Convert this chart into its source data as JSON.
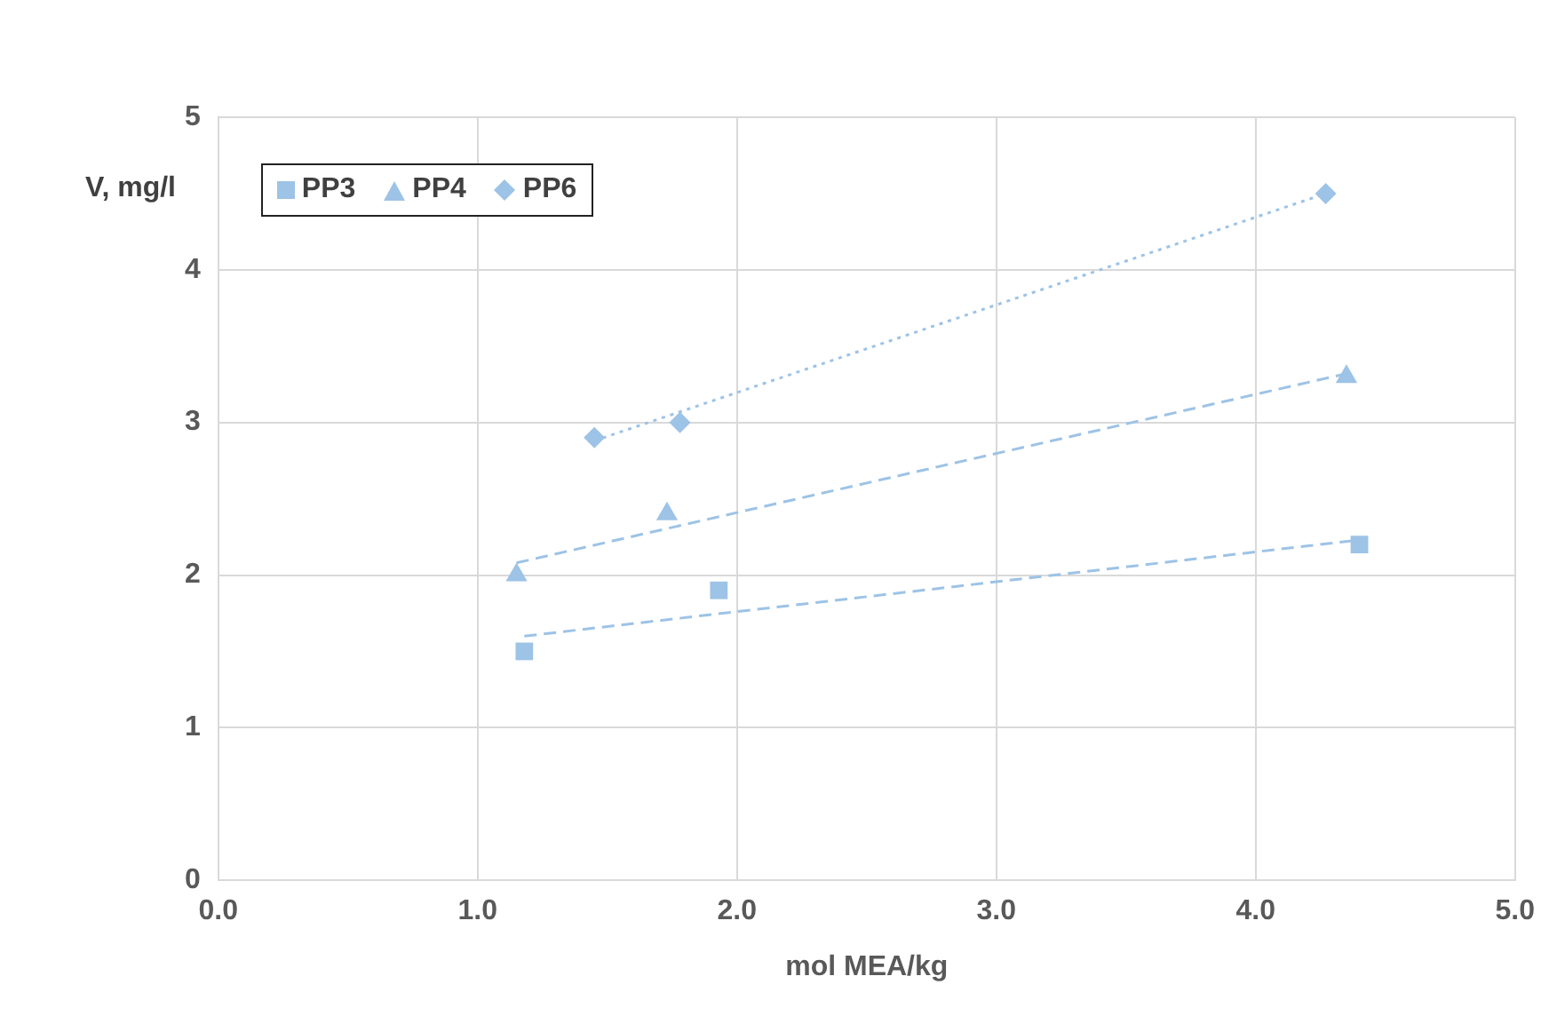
{
  "chart_data": {
    "type": "scatter",
    "xlabel": "mol MEA/kg",
    "ylabel": "V, mg/l",
    "xlim": [
      0,
      5
    ],
    "xticks": [
      {
        "value": 0,
        "label": "0.0"
      },
      {
        "value": 1,
        "label": "1.0"
      },
      {
        "value": 2,
        "label": "2.0"
      },
      {
        "value": 3,
        "label": "3.0"
      },
      {
        "value": 4,
        "label": "4.0"
      },
      {
        "value": 5,
        "label": "5.0"
      }
    ],
    "ylim": [
      0,
      5
    ],
    "yticks": [
      0,
      1,
      2,
      3,
      4,
      5
    ],
    "grid": true,
    "legend": "top left",
    "series": [
      {
        "name": "PP3",
        "marker": "square",
        "color": "#9dc3e6",
        "x": [
          1.18,
          1.93,
          4.4
        ],
        "values": [
          1.5,
          1.9,
          2.2
        ]
      },
      {
        "name": "PP4",
        "marker": "triangle",
        "color": "#9dc3e6",
        "x": [
          1.15,
          1.73,
          4.35
        ],
        "values": [
          2.0,
          2.4,
          3.3
        ]
      },
      {
        "name": "PP6",
        "marker": "diamond",
        "color": "#9dc3e6",
        "x": [
          1.45,
          1.78,
          4.27
        ],
        "values": [
          2.9,
          3.0,
          4.5
        ]
      },
      {
        "type": "line",
        "line_style": "dashed",
        "marker": "none",
        "color": "#9dc3e6",
        "x": [
          1.18,
          4.4
        ],
        "values": [
          1.6,
          2.23
        ]
      },
      {
        "type": "line",
        "line_style": "dashed",
        "marker": "none",
        "color": "#9dc3e6",
        "x": [
          1.15,
          4.35
        ],
        "values": [
          2.08,
          3.32
        ]
      },
      {
        "type": "line",
        "line_style": "dotted",
        "marker": "none",
        "color": "#9dc3e6",
        "x": [
          1.45,
          4.27
        ],
        "values": [
          2.88,
          4.5
        ]
      }
    ]
  }
}
